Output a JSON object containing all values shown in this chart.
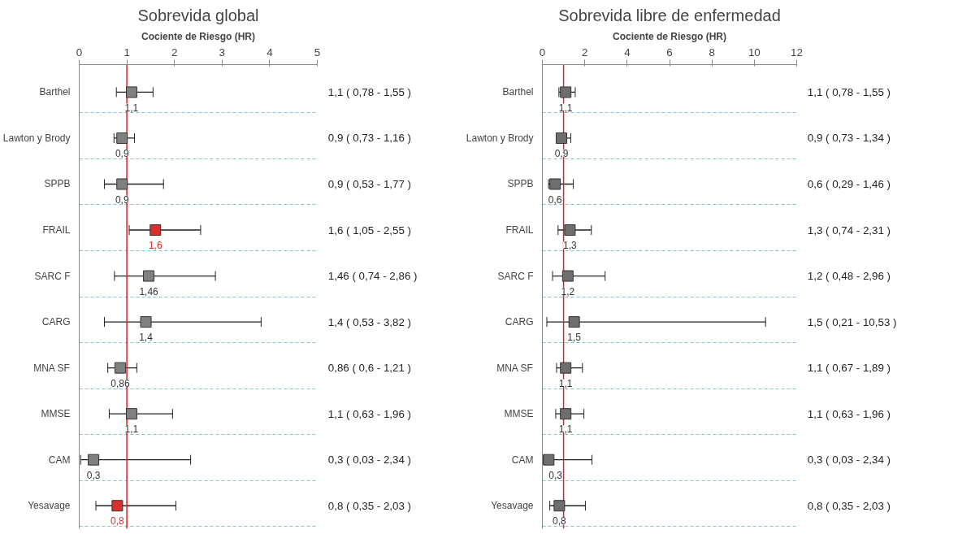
{
  "chart_data": [
    {
      "type": "scatter",
      "title": "Sobrevida global",
      "xlabel": "Cociente de Riesgo (HR)",
      "categories": [
        "Barthel",
        "Lawton y Brody",
        "SPPB",
        "FRAIL",
        "SARC F",
        "CARG",
        "MNA SF",
        "MMSE",
        "CAM",
        "Yesavage"
      ],
      "values": [
        1.1,
        0.9,
        0.9,
        1.6,
        1.46,
        1.4,
        0.86,
        1.1,
        0.3,
        0.8
      ],
      "errors": [
        [
          0.78,
          1.55
        ],
        [
          0.73,
          1.16
        ],
        [
          0.53,
          1.77
        ],
        [
          1.05,
          2.55
        ],
        [
          0.74,
          2.86
        ],
        [
          0.53,
          3.82
        ],
        [
          0.6,
          1.21
        ],
        [
          0.63,
          1.96
        ],
        [
          0.03,
          2.34
        ],
        [
          0.35,
          2.03
        ]
      ],
      "value_labels": [
        "1,1",
        "0,9",
        "0,9",
        "1,6",
        "1,46",
        "1,4",
        "0,86",
        "1,1",
        "0,3",
        "0,8"
      ],
      "colors": [
        "#808080",
        "#808080",
        "#808080",
        "#d9302c",
        "#808080",
        "#808080",
        "#808080",
        "#808080",
        "#808080",
        "#d9302c"
      ],
      "orientation": "horizontal",
      "marker": "square",
      "xlim": [
        0,
        5
      ],
      "xticks": [
        0,
        1,
        2,
        3,
        4,
        5
      ],
      "grid": "y",
      "ref_lines": [
        {
          "axis": "x",
          "value": 1,
          "color": "#e0201c"
        }
      ],
      "annotations": [
        "1,1 ( 0,78 - 1,55 )",
        "0,9 ( 0,73 - 1,16 )",
        "0,9 ( 0,53 - 1,77 )",
        "1,6 ( 1,05 - 2,55 )",
        "1,46 ( 0,74 - 2,86 )",
        "1,4 ( 0,53 - 3,82 )",
        "0,86 ( 0,6 - 1,21 )",
        "1,1 ( 0,63 - 1,96 )",
        "0,3 ( 0,03 - 2,34 )",
        "0,8 ( 0,35 - 2,03 )"
      ]
    },
    {
      "type": "scatter",
      "title": "Sobrevida libre de enfermedad",
      "xlabel": "Cociente de Riesgo (HR)",
      "categories": [
        "Barthel",
        "Lawton y Brody",
        "SPPB",
        "FRAIL",
        "SARC F",
        "CARG",
        "MNA SF",
        "MMSE",
        "CAM",
        "Yesavage"
      ],
      "values": [
        1.1,
        0.9,
        0.6,
        1.3,
        1.2,
        1.5,
        1.1,
        1.1,
        0.3,
        0.8
      ],
      "errors": [
        [
          0.78,
          1.55
        ],
        [
          0.73,
          1.34
        ],
        [
          0.29,
          1.46
        ],
        [
          0.74,
          2.31
        ],
        [
          0.48,
          2.96
        ],
        [
          0.21,
          10.53
        ],
        [
          0.67,
          1.89
        ],
        [
          0.63,
          1.96
        ],
        [
          0.03,
          2.34
        ],
        [
          0.35,
          2.03
        ]
      ],
      "value_labels": [
        "1,1",
        "0,9",
        "0,6",
        "1,3",
        "1,2",
        "1,5",
        "1,1",
        "1,1",
        "0,3",
        "0,8"
      ],
      "colors": [
        "#6e6e6e",
        "#6e6e6e",
        "#6e6e6e",
        "#6e6e6e",
        "#6e6e6e",
        "#6e6e6e",
        "#6e6e6e",
        "#6e6e6e",
        "#6e6e6e",
        "#6e6e6e"
      ],
      "orientation": "horizontal",
      "marker": "square",
      "xlim": [
        0,
        12
      ],
      "xticks": [
        0,
        2,
        4,
        6,
        8,
        10,
        12
      ],
      "grid": "y",
      "ref_lines": [
        {
          "axis": "x",
          "value": 1,
          "color": "#e0201c"
        }
      ],
      "annotations": [
        "1,1 ( 0,78 - 1,55 )",
        "0,9 ( 0,73 - 1,34 )",
        "0,6 ( 0,29 - 1,46 )",
        "1,3 ( 0,74 - 2,31 )",
        "1,2 ( 0,48 - 2,96 )",
        "1,5 ( 0,21 - 10,53 )",
        "1,1 ( 0,67 - 1,89 )",
        "1,1 ( 0,63 - 1,96 )",
        "0,3 ( 0,03 - 2,34 )",
        "0,8 ( 0,35 - 2,03 )"
      ]
    }
  ]
}
